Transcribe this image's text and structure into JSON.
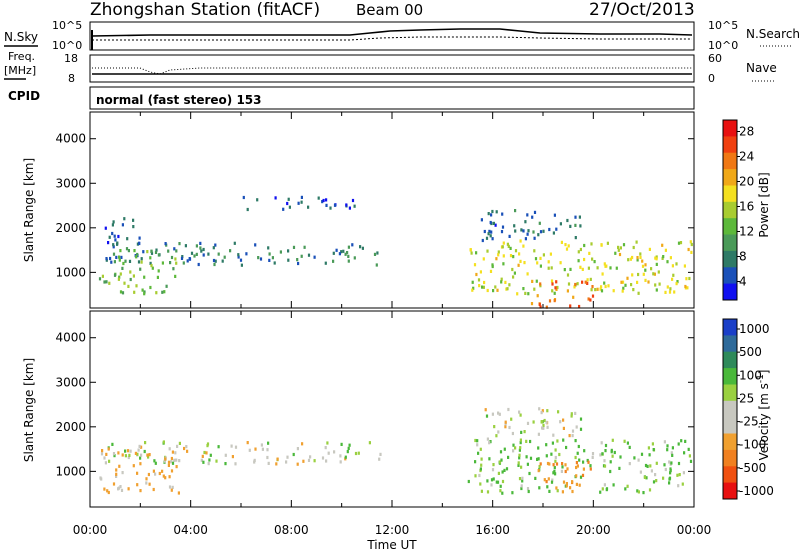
{
  "header": {
    "title": "Zhongshan Station (fitACF)",
    "beam": "Beam 00",
    "date": "27/Oct/2013"
  },
  "noise_panel": {
    "left_label": "N.Sky",
    "right_label": "N.Search",
    "right_line_style": "dotted",
    "ticks": [
      "10^5",
      "10^0"
    ]
  },
  "freq_panel": {
    "left_label_line1": "Freq.",
    "left_label_line2": "[MHz]",
    "left_ticks": [
      "18",
      "8"
    ],
    "right_ticks": [
      "60",
      "0"
    ],
    "right_label": "Nave",
    "right_line_style": "dotted"
  },
  "cpid": {
    "label": "CPID",
    "value": "normal (fast stereo) 153"
  },
  "chart_data": [
    {
      "type": "heatmap",
      "name": "power",
      "ylabel": "Slant Range [km]",
      "xlabel": "",
      "ylim": [
        200,
        4600
      ],
      "yticks": [
        "1000",
        "2000",
        "3000",
        "4000"
      ],
      "colorbar": {
        "label": "Power [dB]",
        "ticks": [
          "4",
          "8",
          "12",
          "16",
          "20",
          "24",
          "28"
        ],
        "colors": [
          "#1010f0",
          "#1a50b8",
          "#2e7a66",
          "#4a9a58",
          "#5cb83a",
          "#a8cc30",
          "#f4e020",
          "#f0a818",
          "#f07814",
          "#f04010",
          "#e81010"
        ]
      },
      "echo_regions": [
        {
          "t0": 0.6,
          "t1": 11.6,
          "r0": 1150,
          "r1": 1650,
          "value": 8
        },
        {
          "t0": 0.3,
          "t1": 3.5,
          "r0": 500,
          "r1": 1500,
          "value": 14
        },
        {
          "t0": 0.5,
          "t1": 2.0,
          "r0": 1600,
          "r1": 2200,
          "value": 6
        },
        {
          "t0": 15.0,
          "t1": 24.0,
          "r0": 500,
          "r1": 1700,
          "value": 18
        },
        {
          "t0": 17.5,
          "t1": 20.0,
          "r0": 200,
          "r1": 800,
          "value": 26
        },
        {
          "t0": 15.5,
          "t1": 19.5,
          "r0": 1700,
          "r1": 2400,
          "value": 7
        },
        {
          "t0": 6.0,
          "t1": 10.5,
          "r0": 2400,
          "r1": 2700,
          "value": 5
        }
      ]
    },
    {
      "type": "heatmap",
      "name": "velocity",
      "ylabel": "Slant Range [km]",
      "xlabel": "Time UT",
      "xlim": [
        0,
        24
      ],
      "xticks": [
        "00:00",
        "04:00",
        "08:00",
        "12:00",
        "16:00",
        "20:00",
        "00:00"
      ],
      "ylim": [
        200,
        4600
      ],
      "yticks": [
        "1000",
        "2000",
        "3000",
        "4000"
      ],
      "colorbar": {
        "label": "Velocity [m s⁻¹]",
        "label_parts": [
          "Velocity [m s",
          "-1",
          "]"
        ],
        "ticks": [
          "1000",
          "500",
          "100",
          "25",
          "-25",
          "-100",
          "-500",
          "-1000"
        ],
        "colors": [
          "#1a3fc8",
          "#2e6a9a",
          "#2e8a5a",
          "#4ab83a",
          "#9ad040",
          "#c8c8c0",
          "#c8c8c0",
          "#f0a030",
          "#f08020",
          "#f05010",
          "#e81010"
        ]
      },
      "echo_regions": [
        {
          "t0": 0.6,
          "t1": 11.6,
          "r0": 1150,
          "r1": 1650,
          "value": 0
        },
        {
          "t0": 0.3,
          "t1": 3.5,
          "r0": 500,
          "r1": 1500,
          "value": -150
        },
        {
          "t0": 15.0,
          "t1": 24.0,
          "r0": 500,
          "r1": 1700,
          "value": 120
        },
        {
          "t0": 17.5,
          "t1": 20.0,
          "r0": 500,
          "r1": 1200,
          "value": -300
        },
        {
          "t0": 15.5,
          "t1": 19.5,
          "r0": 1700,
          "r1": 2400,
          "value": 0
        }
      ]
    }
  ]
}
